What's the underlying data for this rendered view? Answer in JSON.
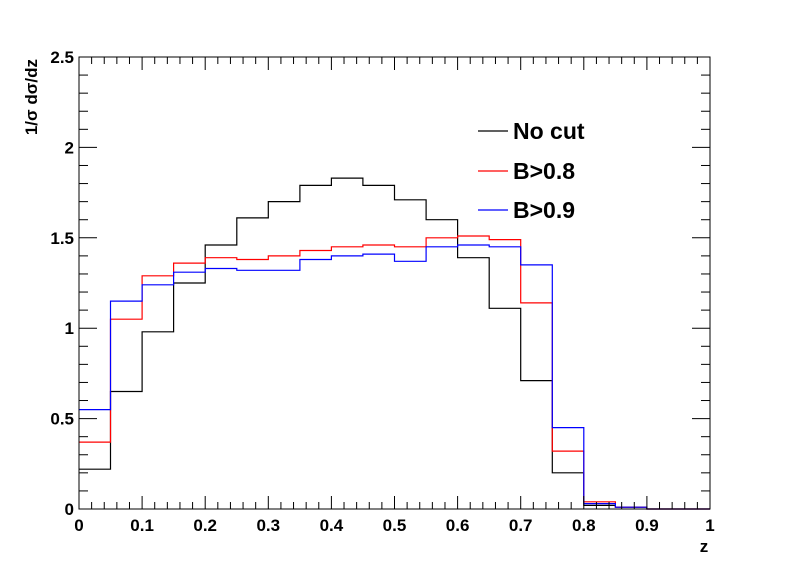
{
  "chart_data": {
    "type": "line",
    "step": true,
    "xlabel": "z",
    "ylabel": "1/σ dσ/dz",
    "xlim": [
      0,
      1
    ],
    "ylim": [
      0,
      2.5
    ],
    "x_ticks": [
      {
        "value": 0,
        "label": "0"
      },
      {
        "value": 0.1,
        "label": "0.1"
      },
      {
        "value": 0.2,
        "label": "0.2"
      },
      {
        "value": 0.3,
        "label": "0.3"
      },
      {
        "value": 0.4,
        "label": "0.4"
      },
      {
        "value": 0.5,
        "label": "0.5"
      },
      {
        "value": 0.6,
        "label": "0.6"
      },
      {
        "value": 0.7,
        "label": "0.7"
      },
      {
        "value": 0.8,
        "label": "0.8"
      },
      {
        "value": 0.9,
        "label": "0.9"
      },
      {
        "value": 1,
        "label": "1"
      }
    ],
    "y_ticks": [
      {
        "value": 0,
        "label": "0"
      },
      {
        "value": 0.5,
        "label": "0.5"
      },
      {
        "value": 1,
        "label": "1"
      },
      {
        "value": 1.5,
        "label": "1.5"
      },
      {
        "value": 2,
        "label": "2"
      },
      {
        "value": 2.5,
        "label": "2.5"
      }
    ],
    "bin_edges": [
      0,
      0.05,
      0.1,
      0.15,
      0.2,
      0.25,
      0.3,
      0.35,
      0.4,
      0.45,
      0.5,
      0.55,
      0.6,
      0.65,
      0.7,
      0.75,
      0.8,
      0.85,
      0.9,
      0.95,
      1.0
    ],
    "legend_position": "top-right",
    "series": [
      {
        "name": "No cut",
        "color": "#000000",
        "values": [
          0.22,
          0.65,
          0.98,
          1.25,
          1.46,
          1.61,
          1.7,
          1.79,
          1.83,
          1.79,
          1.71,
          1.6,
          1.39,
          1.11,
          0.71,
          0.2,
          0.02,
          0.01,
          0.0,
          0.0
        ]
      },
      {
        "name": "B>0.8",
        "color": "#ff0000",
        "values": [
          0.37,
          1.05,
          1.29,
          1.36,
          1.39,
          1.38,
          1.4,
          1.43,
          1.45,
          1.46,
          1.45,
          1.5,
          1.51,
          1.49,
          1.14,
          0.32,
          0.04,
          0.01,
          0.0,
          0.0
        ]
      },
      {
        "name": "B>0.9",
        "color": "#0000ff",
        "values": [
          0.55,
          1.15,
          1.24,
          1.31,
          1.33,
          1.32,
          1.32,
          1.38,
          1.4,
          1.41,
          1.37,
          1.45,
          1.46,
          1.45,
          1.35,
          0.45,
          0.03,
          0.01,
          0.0,
          0.0
        ]
      }
    ]
  }
}
